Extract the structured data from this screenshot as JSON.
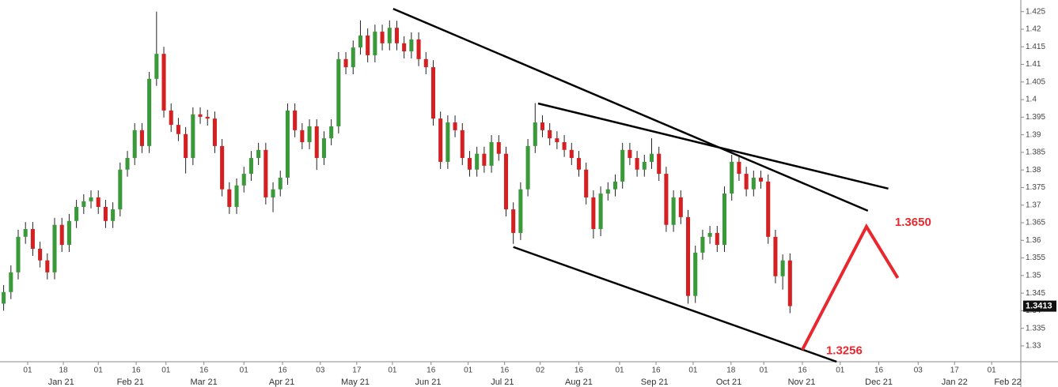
{
  "chart_data": {
    "type": "candlestick",
    "up_color": "#3a9a3a",
    "down_color": "#d42020",
    "wick_color": "#222222",
    "xlim": [
      -0.5,
      139.7
    ],
    "ylim": [
      1.3255,
      1.4283
    ],
    "yticks": [
      1.33,
      1.335,
      1.34,
      1.345,
      1.35,
      1.355,
      1.36,
      1.365,
      1.37,
      1.375,
      1.38,
      1.385,
      1.39,
      1.395,
      1.4,
      1.405,
      1.41,
      1.415,
      1.42,
      1.425
    ],
    "xticks": [
      {
        "value": 3.3,
        "label": "01"
      },
      {
        "value": 8.2,
        "label": "18"
      },
      {
        "value": 13,
        "label": "01"
      },
      {
        "value": 18.2,
        "label": "16"
      },
      {
        "value": 22.3,
        "label": "01"
      },
      {
        "value": 27.5,
        "label": "16"
      },
      {
        "value": 33,
        "label": "01"
      },
      {
        "value": 38.3,
        "label": "16"
      },
      {
        "value": 43.5,
        "label": "03"
      },
      {
        "value": 48.5,
        "label": "17"
      },
      {
        "value": 53.4,
        "label": "01"
      },
      {
        "value": 58.7,
        "label": "16"
      },
      {
        "value": 63.8,
        "label": "01"
      },
      {
        "value": 68.8,
        "label": "16"
      },
      {
        "value": 73.7,
        "label": "02"
      },
      {
        "value": 79,
        "label": "16"
      },
      {
        "value": 84.6,
        "label": "01"
      },
      {
        "value": 89.6,
        "label": "16"
      },
      {
        "value": 94.7,
        "label": "01"
      },
      {
        "value": 99.9,
        "label": "18"
      },
      {
        "value": 104.4,
        "label": "01"
      },
      {
        "value": 109.7,
        "label": "16"
      },
      {
        "value": 114.9,
        "label": "01"
      },
      {
        "value": 120.2,
        "label": "16"
      },
      {
        "value": 125.6,
        "label": "03"
      },
      {
        "value": 130.6,
        "label": "17"
      },
      {
        "value": 135.7,
        "label": "01"
      }
    ],
    "month_labels": [
      {
        "value": 7.9,
        "label": "Jan 21"
      },
      {
        "value": 17.4,
        "label": "Feb 21"
      },
      {
        "value": 27.5,
        "label": "Mar 21"
      },
      {
        "value": 38.2,
        "label": "Apr 21"
      },
      {
        "value": 48.3,
        "label": "May 21"
      },
      {
        "value": 58.3,
        "label": "Jun 21"
      },
      {
        "value": 68.5,
        "label": "Jul 21"
      },
      {
        "value": 79,
        "label": "Aug 21"
      },
      {
        "value": 89.4,
        "label": "Sep 21"
      },
      {
        "value": 99.6,
        "label": "Oct 21"
      },
      {
        "value": 109.6,
        "label": "Nov 21"
      },
      {
        "value": 120.2,
        "label": "Dec 21"
      },
      {
        "value": 130.6,
        "label": "Jan 22"
      },
      {
        "value": 137.9,
        "label": "Feb 22"
      }
    ],
    "open": [
      1.342,
      1.3453,
      1.3509,
      1.361,
      1.3632,
      1.3576,
      1.3543,
      1.3509,
      1.3644,
      1.3587,
      1.3655,
      1.3695,
      1.3711,
      1.3722,
      1.3695,
      1.3655,
      1.3688,
      1.3801,
      1.3834,
      1.3913,
      1.3868,
      1.4059,
      1.413,
      1.3969,
      1.3928,
      1.3902,
      1.3834,
      1.3958,
      1.3951,
      1.3946,
      1.3868,
      1.3745,
      1.3695,
      1.3756,
      1.3789,
      1.3834,
      1.3857,
      1.3722,
      1.3745,
      1.3778,
      1.3969,
      1.3913,
      1.3879,
      1.3924,
      1.3834,
      1.389,
      1.3924,
      1.4115,
      1.4092,
      1.4148,
      1.4182,
      1.4126,
      1.4193,
      1.416,
      1.4204,
      1.416,
      1.4137,
      1.4171,
      1.4115,
      1.4092,
      1.3946,
      1.3823,
      1.3935,
      1.3913,
      1.3834,
      1.3801,
      1.3846,
      1.3812,
      1.3879,
      1.3846,
      1.3688,
      1.3621,
      1.3745,
      1.3868,
      1.3935,
      1.3913,
      1.389,
      1.3879,
      1.3857,
      1.3834,
      1.3801,
      1.3722,
      1.3632,
      1.3733,
      1.3745,
      1.3767,
      1.3857,
      1.3834,
      1.3801,
      1.3823,
      1.3846,
      1.3789,
      1.3644,
      1.3722,
      1.3666,
      1.3442,
      1.3565,
      1.361,
      1.3621,
      1.3587,
      1.3733,
      1.3823,
      1.3789,
      1.3745,
      1.3778,
      1.3767,
      1.361,
      1.3498,
      1.3543
    ],
    "high": [
      1.3473,
      1.3529,
      1.363,
      1.3652,
      1.3652,
      1.3596,
      1.3563,
      1.3664,
      1.3664,
      1.3675,
      1.3715,
      1.3731,
      1.3742,
      1.3742,
      1.3715,
      1.3708,
      1.3821,
      1.3854,
      1.3933,
      1.3933,
      1.4079,
      1.425,
      1.415,
      1.3989,
      1.3948,
      1.3922,
      1.3978,
      1.3978,
      1.3971,
      1.3966,
      1.3888,
      1.3765,
      1.3776,
      1.3809,
      1.3854,
      1.3877,
      1.3877,
      1.3765,
      1.3798,
      1.3989,
      1.3989,
      1.3933,
      1.3944,
      1.3944,
      1.391,
      1.3944,
      1.4135,
      1.4135,
      1.4168,
      1.4225,
      1.4202,
      1.4213,
      1.4213,
      1.4225,
      1.4224,
      1.418,
      1.4191,
      1.4191,
      1.4135,
      1.4112,
      1.3966,
      1.3955,
      1.3955,
      1.3933,
      1.3854,
      1.3866,
      1.3866,
      1.3899,
      1.3899,
      1.3866,
      1.3708,
      1.3765,
      1.3888,
      1.399,
      1.3955,
      1.3933,
      1.391,
      1.3899,
      1.3877,
      1.3854,
      1.3821,
      1.3742,
      1.3753,
      1.3765,
      1.3787,
      1.3877,
      1.3877,
      1.3854,
      1.3843,
      1.389,
      1.3866,
      1.3809,
      1.3742,
      1.3742,
      1.3686,
      1.3585,
      1.363,
      1.3641,
      1.3641,
      1.3753,
      1.3843,
      1.3843,
      1.3809,
      1.3798,
      1.3798,
      1.3787,
      1.363,
      1.356,
      1.3563
    ],
    "low": [
      1.34,
      1.3433,
      1.3489,
      1.359,
      1.3556,
      1.3523,
      1.3489,
      1.3489,
      1.3567,
      1.3567,
      1.3635,
      1.3675,
      1.3691,
      1.3675,
      1.3635,
      1.3635,
      1.3668,
      1.3781,
      1.3814,
      1.3848,
      1.3848,
      1.4039,
      1.3949,
      1.3908,
      1.3882,
      1.379,
      1.3814,
      1.3931,
      1.3926,
      1.3848,
      1.3725,
      1.3675,
      1.3675,
      1.3736,
      1.3769,
      1.3814,
      1.3702,
      1.368,
      1.3725,
      1.3758,
      1.3893,
      1.3859,
      1.3859,
      1.38,
      1.3814,
      1.387,
      1.3904,
      1.4072,
      1.4072,
      1.4128,
      1.4106,
      1.4106,
      1.414,
      1.414,
      1.414,
      1.4117,
      1.4117,
      1.4095,
      1.4072,
      1.3926,
      1.3803,
      1.3803,
      1.3893,
      1.3814,
      1.3781,
      1.3781,
      1.3792,
      1.3792,
      1.3826,
      1.3668,
      1.359,
      1.3601,
      1.3725,
      1.3848,
      1.3893,
      1.387,
      1.3859,
      1.3837,
      1.3814,
      1.3781,
      1.3702,
      1.3605,
      1.3612,
      1.3713,
      1.3725,
      1.3747,
      1.3814,
      1.3781,
      1.3781,
      1.3803,
      1.3769,
      1.3624,
      1.3624,
      1.3646,
      1.342,
      1.3422,
      1.3545,
      1.359,
      1.3567,
      1.3567,
      1.3713,
      1.3769,
      1.3725,
      1.3725,
      1.3747,
      1.359,
      1.3478,
      1.346,
      1.3393
    ],
    "close": [
      1.3453,
      1.3509,
      1.361,
      1.3632,
      1.3576,
      1.3543,
      1.3509,
      1.3644,
      1.3587,
      1.3655,
      1.3695,
      1.3711,
      1.3722,
      1.3695,
      1.3655,
      1.3688,
      1.3801,
      1.3834,
      1.3913,
      1.3868,
      1.4059,
      1.413,
      1.3969,
      1.3928,
      1.3902,
      1.3834,
      1.3958,
      1.3951,
      1.3946,
      1.3868,
      1.3745,
      1.3695,
      1.3756,
      1.3789,
      1.3834,
      1.3857,
      1.3722,
      1.3745,
      1.3778,
      1.3969,
      1.3913,
      1.3879,
      1.3924,
      1.3834,
      1.389,
      1.3924,
      1.4115,
      1.4092,
      1.4148,
      1.4182,
      1.4126,
      1.4193,
      1.416,
      1.4204,
      1.416,
      1.4137,
      1.4171,
      1.4115,
      1.4092,
      1.3946,
      1.3823,
      1.3935,
      1.3913,
      1.3834,
      1.3801,
      1.3846,
      1.3812,
      1.3879,
      1.3846,
      1.3688,
      1.3621,
      1.3745,
      1.3868,
      1.3935,
      1.3913,
      1.389,
      1.3879,
      1.3857,
      1.3834,
      1.3801,
      1.3722,
      1.3632,
      1.3733,
      1.3745,
      1.3767,
      1.3857,
      1.3834,
      1.3801,
      1.3823,
      1.3846,
      1.3789,
      1.3644,
      1.3722,
      1.3666,
      1.3442,
      1.3565,
      1.361,
      1.3621,
      1.3587,
      1.3733,
      1.3823,
      1.3789,
      1.3745,
      1.3778,
      1.3767,
      1.361,
      1.3498,
      1.3543,
      1.3413
    ],
    "last_price": {
      "value": 1.3413,
      "label": "1.3413"
    },
    "trendlines": [
      {
        "color": "#000000",
        "x": [
          53.5,
          118.7
        ],
        "y": [
          1.4258,
          1.3684
        ]
      },
      {
        "color": "#000000",
        "x": [
          73.4,
          121.5
        ],
        "y": [
          1.3989,
          1.3747
        ]
      },
      {
        "color": "#000000",
        "x": [
          70.0,
          114.4
        ],
        "y": [
          1.3581,
          1.3255
        ]
      },
      {
        "color": "#e8282e",
        "x": [
          109.7,
          118.5,
          122.8
        ],
        "y": [
          1.3289,
          1.3639,
          1.3493
        ]
      }
    ],
    "annotations": [
      {
        "text": "1.3650",
        "value": 1.365,
        "color": "#e8282e"
      },
      {
        "text": "1.3256",
        "value": 1.3256,
        "color": "#e8282e"
      }
    ]
  }
}
